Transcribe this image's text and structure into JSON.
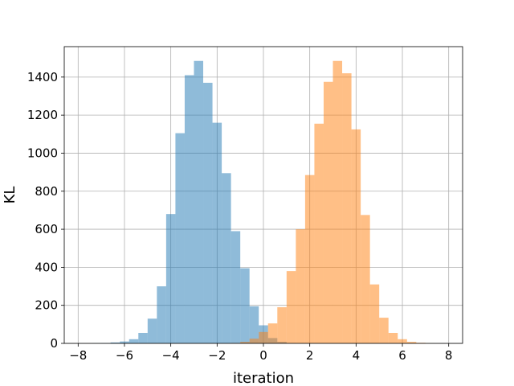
{
  "chart_data": {
    "type": "bar",
    "subtype": "histogram",
    "title": "",
    "xlabel": "iteration",
    "ylabel": "KL",
    "xlim": [
      -8.6,
      8.6
    ],
    "ylim": [
      0,
      1560
    ],
    "xticks": [
      -8,
      -6,
      -4,
      -2,
      0,
      2,
      4,
      6,
      8
    ],
    "xtick_labels": [
      "−8",
      "−6",
      "−4",
      "−2",
      "0",
      "2",
      "4",
      "6",
      "8"
    ],
    "yticks": [
      0,
      200,
      400,
      600,
      800,
      1000,
      1200,
      1400
    ],
    "ytick_labels": [
      "0",
      "200",
      "400",
      "600",
      "800",
      "1000",
      "1200",
      "1400"
    ],
    "grid": true,
    "legend": "none",
    "series": [
      {
        "color": "#1f77b4",
        "alpha": 0.5,
        "bins": [
          [
            -7.4,
            -7.0,
            1
          ],
          [
            -7.0,
            -6.6,
            2
          ],
          [
            -6.6,
            -6.2,
            5
          ],
          [
            -6.2,
            -5.8,
            10
          ],
          [
            -5.8,
            -5.4,
            22
          ],
          [
            -5.4,
            -5.0,
            55
          ],
          [
            -5.0,
            -4.6,
            130
          ],
          [
            -4.6,
            -4.2,
            300
          ],
          [
            -4.2,
            -3.8,
            680
          ],
          [
            -3.8,
            -3.4,
            1105
          ],
          [
            -3.4,
            -3.0,
            1410
          ],
          [
            -3.0,
            -2.6,
            1485
          ],
          [
            -2.6,
            -2.2,
            1370
          ],
          [
            -2.2,
            -1.8,
            1160
          ],
          [
            -1.8,
            -1.4,
            895
          ],
          [
            -1.4,
            -1.0,
            590
          ],
          [
            -1.0,
            -0.6,
            395
          ],
          [
            -0.6,
            -0.2,
            195
          ],
          [
            -0.2,
            0.2,
            95
          ],
          [
            0.2,
            0.6,
            28
          ],
          [
            0.6,
            1.0,
            8
          ],
          [
            1.0,
            1.4,
            2
          ]
        ]
      },
      {
        "color": "#ff7f0e",
        "alpha": 0.5,
        "bins": [
          [
            -1.4,
            -1.0,
            2
          ],
          [
            -1.0,
            -0.6,
            8
          ],
          [
            -0.6,
            -0.2,
            25
          ],
          [
            -0.2,
            0.2,
            60
          ],
          [
            0.2,
            0.6,
            105
          ],
          [
            0.6,
            1.0,
            190
          ],
          [
            1.0,
            1.4,
            380
          ],
          [
            1.4,
            1.8,
            600
          ],
          [
            1.8,
            2.2,
            885
          ],
          [
            2.2,
            2.6,
            1155
          ],
          [
            2.6,
            3.0,
            1375
          ],
          [
            3.0,
            3.4,
            1485
          ],
          [
            3.4,
            3.8,
            1420
          ],
          [
            3.8,
            4.2,
            1125
          ],
          [
            4.2,
            4.6,
            675
          ],
          [
            4.6,
            5.0,
            310
          ],
          [
            5.0,
            5.4,
            135
          ],
          [
            5.4,
            5.8,
            55
          ],
          [
            5.8,
            6.2,
            22
          ],
          [
            6.2,
            6.6,
            8
          ],
          [
            6.6,
            7.0,
            3
          ],
          [
            7.0,
            7.4,
            1
          ]
        ]
      }
    ]
  }
}
